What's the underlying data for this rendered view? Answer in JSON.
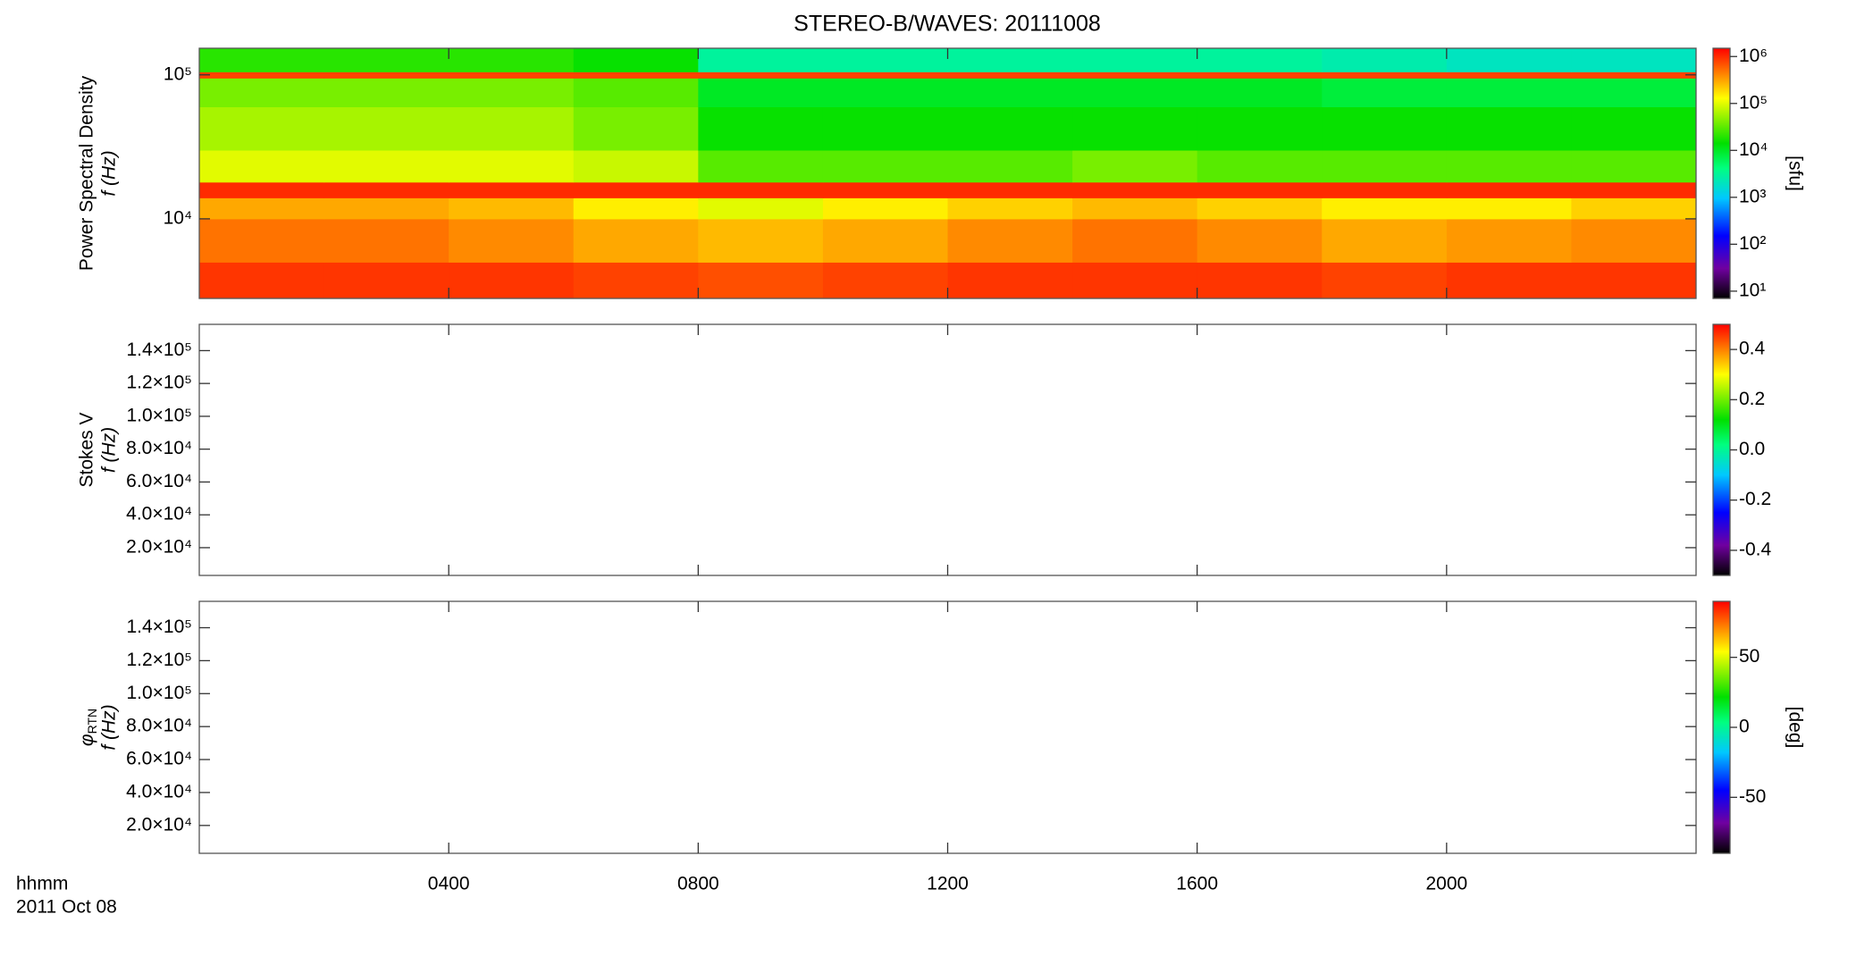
{
  "chart_data": [
    {
      "type": "heatmap",
      "title": "STEREO-B/WAVES: 20111008",
      "ylabel": "Power Spectral Density",
      "ylabel2": "f (Hz)",
      "clabel": "[sfu]",
      "ylog": true,
      "ylim": [
        2800,
        153000
      ],
      "yticks": [
        {
          "value": 10000,
          "label": "10⁴"
        },
        {
          "value": 100000,
          "label": "10⁵"
        }
      ],
      "x": [
        0,
        2,
        4,
        6,
        8,
        10,
        12,
        14,
        16,
        18,
        20,
        22,
        24
      ],
      "y": [
        2800,
        5000,
        10000,
        14000,
        18000,
        30000,
        60000,
        95000,
        105000,
        153000
      ],
      "values": [
        [
          900000,
          900000,
          900000,
          800000,
          700000,
          800000,
          900000,
          900000,
          900000,
          800000,
          900000,
          900000
        ],
        [
          500000,
          500000,
          400000,
          300000,
          250000,
          300000,
          400000,
          500000,
          400000,
          300000,
          350000,
          400000
        ],
        [
          300000,
          300000,
          250000,
          150000,
          100000,
          150000,
          200000,
          250000,
          200000,
          150000,
          150000,
          200000
        ],
        [
          1000000,
          1000000,
          1000000,
          1000000,
          1000000,
          1000000,
          1000000,
          1000000,
          1000000,
          1000000,
          1000000,
          1000000
        ],
        [
          100000,
          100000,
          100000,
          80000,
          30000,
          30000,
          30000,
          40000,
          30000,
          30000,
          30000,
          30000
        ],
        [
          60000,
          60000,
          60000,
          40000,
          15000,
          15000,
          15000,
          15000,
          15000,
          15000,
          15000,
          15000
        ],
        [
          40000,
          40000,
          40000,
          30000,
          10000,
          10000,
          10000,
          10000,
          10000,
          8000,
          8000,
          8000
        ],
        [
          800000,
          800000,
          800000,
          800000,
          800000,
          800000,
          800000,
          800000,
          800000,
          800000,
          800000,
          800000
        ],
        [
          20000,
          20000,
          20000,
          15000,
          3000,
          3000,
          3000,
          3000,
          3000,
          2500,
          2000,
          2000
        ]
      ],
      "clog": true,
      "clim": [
        7,
        1500000
      ],
      "cticks": [
        {
          "value": 10,
          "label": "10¹"
        },
        {
          "value": 100,
          "label": "10²"
        },
        {
          "value": 1000,
          "label": "10³"
        },
        {
          "value": 10000,
          "label": "10⁴"
        },
        {
          "value": 100000,
          "label": "10⁵"
        },
        {
          "value": 1000000,
          "label": "10⁶"
        }
      ]
    },
    {
      "type": "heatmap",
      "ylabel": "Stokes V",
      "ylabel2": "f (Hz)",
      "ylim": [
        3100,
        156000
      ],
      "yticks": [
        {
          "value": 20000,
          "label": "2.0×10⁴"
        },
        {
          "value": 40000,
          "label": "4.0×10⁴"
        },
        {
          "value": 60000,
          "label": "6.0×10⁴"
        },
        {
          "value": 80000,
          "label": "8.0×10⁴"
        },
        {
          "value": 100000,
          "label": "1.0×10⁵"
        },
        {
          "value": 120000,
          "label": "1.2×10⁵"
        },
        {
          "value": 140000,
          "label": "1.4×10⁵"
        }
      ],
      "clim": [
        -0.5,
        0.5
      ],
      "cticks": [
        -0.4,
        -0.2,
        {
          "value": 0,
          "label": "0.0"
        },
        0.2,
        0.4
      ]
    },
    {
      "type": "heatmap",
      "ylabel_symbol": "φ",
      "ylabel_subscript": "RTN",
      "ylabel2": "f (Hz)",
      "clabel": "[deg]",
      "ylim": [
        3100,
        156000
      ],
      "yticks": [
        {
          "value": 20000,
          "label": "2.0×10⁴"
        },
        {
          "value": 40000,
          "label": "4.0×10⁴"
        },
        {
          "value": 60000,
          "label": "6.0×10⁴"
        },
        {
          "value": 80000,
          "label": "8.0×10⁴"
        },
        {
          "value": 100000,
          "label": "1.0×10⁵"
        },
        {
          "value": 120000,
          "label": "1.2×10⁵"
        },
        {
          "value": 140000,
          "label": "1.4×10⁵"
        }
      ],
      "clim": [
        -90,
        90
      ],
      "cticks": [
        -50,
        0,
        50
      ],
      "xlabel": "hhmm",
      "date": "2011 Oct 08",
      "xlim": [
        0,
        24
      ],
      "xticks": [
        {
          "value": 4,
          "label": "0400"
        },
        {
          "value": 8,
          "label": "0800"
        },
        {
          "value": 12,
          "label": "1200"
        },
        {
          "value": 16,
          "label": "1600"
        },
        {
          "value": 20,
          "label": "2000"
        }
      ]
    }
  ]
}
